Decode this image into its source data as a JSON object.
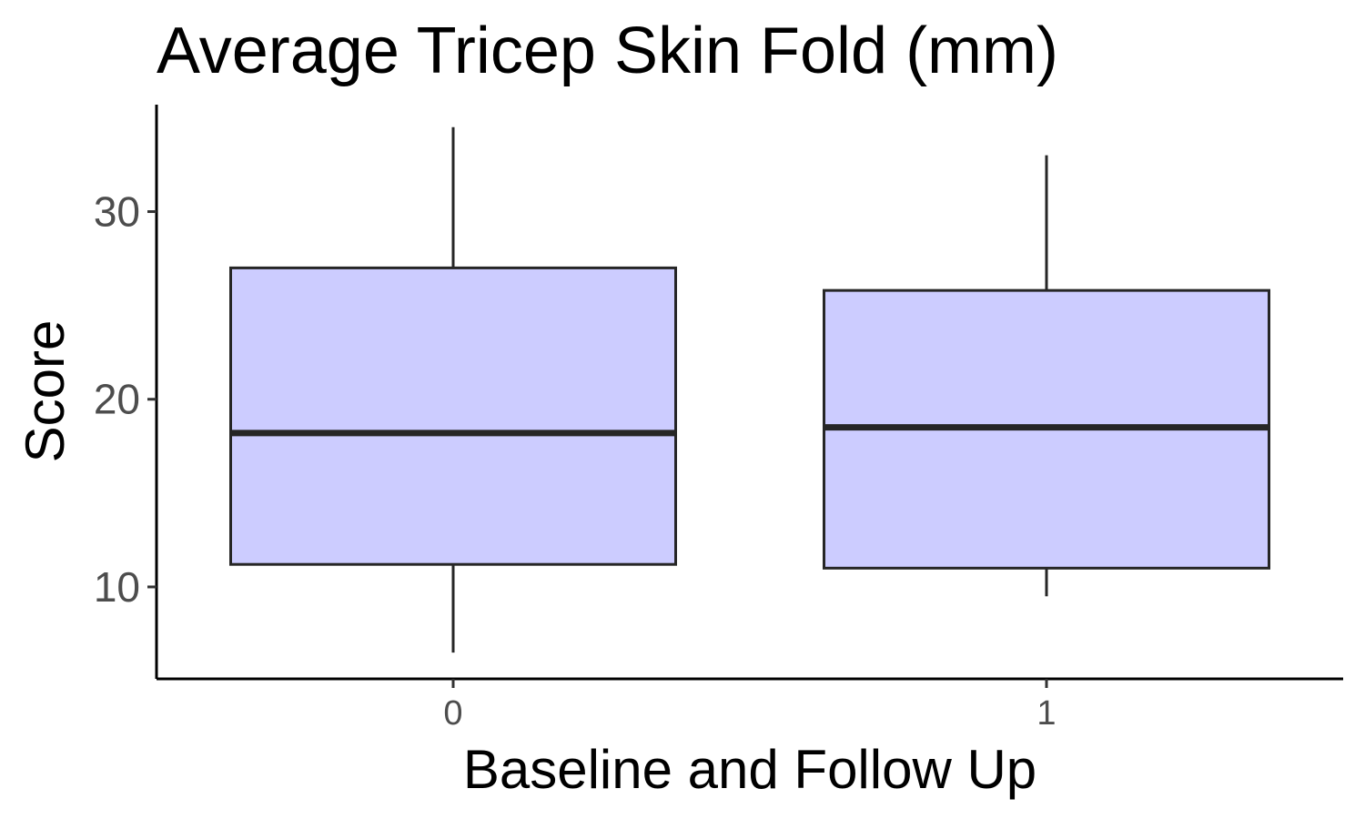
{
  "chart_data": {
    "type": "boxplot",
    "title": "Average Tricep Skin Fold (mm)",
    "xlabel": "Baseline and Follow Up",
    "ylabel": "Score",
    "categories": [
      "0",
      "1"
    ],
    "boxes": [
      {
        "category": "0",
        "min": 6.5,
        "q1": 11.2,
        "median": 18.2,
        "q3": 27.0,
        "max": 34.5
      },
      {
        "category": "1",
        "min": 9.5,
        "q1": 11.0,
        "median": 18.5,
        "q3": 25.8,
        "max": 33.0
      }
    ],
    "y_ticks": [
      10,
      20,
      30
    ],
    "ylim": [
      5.1,
      35.7
    ],
    "grid": false,
    "legend": "none",
    "colors": {
      "box_fill": "#ccccff",
      "box_stroke": "#262626",
      "axis": "#000000"
    }
  }
}
